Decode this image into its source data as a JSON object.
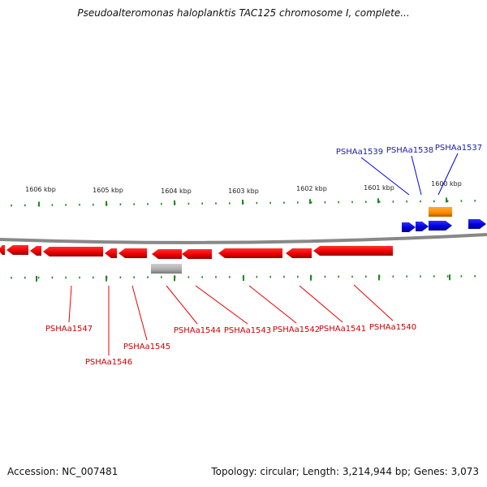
{
  "header": {
    "title": "Pseudoalteromonas haloplanktis TAC125 chromosome I, complete..."
  },
  "footer": {
    "accession": "Accession: NC_007481",
    "summary": "Topology: circular; Length: 3,214,944 bp; Genes: 3,073"
  },
  "colors": {
    "forward_gene": "#0000dd",
    "reverse_gene": "#ee0000",
    "other_feature": "#ff8800",
    "pseudo_feature": "#aaaaaa",
    "backbone": "#888888",
    "ticks": "#228822",
    "forward_label": "#1a1aaa",
    "reverse_label": "#cc0000"
  },
  "scale_labels": [
    "1606 kbp",
    "1605 kbp",
    "1604 kbp",
    "1603 kbp",
    "1602 kbp",
    "1601 kbp",
    "1600 kbp"
  ],
  "forward_gene_labels": [
    "PSHAa1539",
    "PSHAa1538",
    "PSHAa1537"
  ],
  "reverse_gene_labels": [
    "PSHAa1547",
    "PSHAa1546",
    "PSHAa1545",
    "PSHAa1544",
    "PSHAa1543",
    "PSHAa1542",
    "PSHAa1541",
    "PSHAa1540"
  ]
}
